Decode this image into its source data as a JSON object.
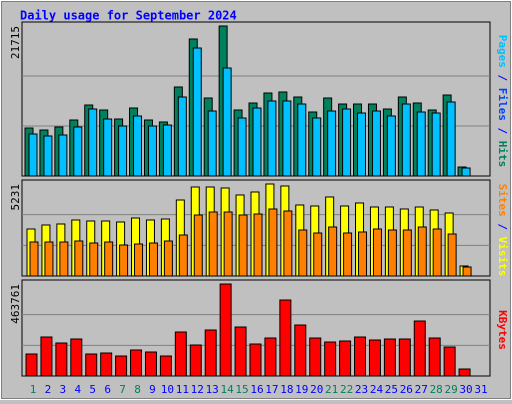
{
  "chart_data": [
    {
      "type": "bar",
      "title": "Daily usage for September 2024",
      "categories": [
        "1",
        "2",
        "3",
        "4",
        "5",
        "6",
        "7",
        "8",
        "9",
        "10",
        "11",
        "12",
        "13",
        "14",
        "15",
        "16",
        "17",
        "18",
        "19",
        "20",
        "21",
        "22",
        "23",
        "24",
        "25",
        "26",
        "27",
        "28",
        "29",
        "30",
        "31"
      ],
      "category_colors": [
        "#00805c",
        "#0000ff",
        "#0000ff",
        "#0000ff",
        "#0000ff",
        "#0000ff",
        "#00805c",
        "#00805c",
        "#0000ff",
        "#0000ff",
        "#0000ff",
        "#0000ff",
        "#0000ff",
        "#00805c",
        "#00805c",
        "#0000ff",
        "#0000ff",
        "#0000ff",
        "#0000ff",
        "#0000ff",
        "#00805c",
        "#00805c",
        "#0000ff",
        "#0000ff",
        "#0000ff",
        "#0000ff",
        "#0000ff",
        "#00805c",
        "#00805c",
        "#0000ff",
        "#0000ff"
      ],
      "axis_label_parts": [
        {
          "text": "Pages",
          "color": "#00c0ff"
        },
        {
          "text": " / ",
          "color": "#0000ff"
        },
        {
          "text": "Files",
          "color": "#0040ff"
        },
        {
          "text": " / ",
          "color": "#0000ff"
        },
        {
          "text": "Hits",
          "color": "#00805c"
        }
      ],
      "ylim": [
        0,
        21715
      ],
      "yticks": [
        21715
      ],
      "series": [
        {
          "name": "Hits",
          "color": "#00805c",
          "values": [
            6949,
            6659,
            7094,
            8107,
            10278,
            9555,
            8252,
            9844,
            8107,
            7817,
            12884,
            19833,
            11292,
            21715,
            9555,
            10568,
            12016,
            12161,
            11437,
            9265,
            11292,
            10423,
            10423,
            10423,
            9699,
            11437,
            10568,
            9555,
            11726,
            1303,
            0
          ]
        },
        {
          "name": "Files",
          "color": "#00c0ff",
          "values": [
            6080,
            5791,
            5935,
            7094,
            9699,
            8252,
            7238,
            8686,
            7238,
            7383,
            11437,
            18530,
            9410,
            15635,
            8397,
            9844,
            10858,
            10858,
            10423,
            8397,
            9410,
            9699,
            9120,
            9410,
            8686,
            10423,
            9265,
            9120,
            10713,
            1158,
            0
          ]
        }
      ]
    },
    {
      "type": "bar",
      "axis_label_parts": [
        {
          "text": "Sites",
          "color": "#ff8000"
        },
        {
          "text": " / ",
          "color": "#0000ff"
        },
        {
          "text": "Visits",
          "color": "#ffff00"
        }
      ],
      "ylim": [
        0,
        5231
      ],
      "yticks": [
        5231
      ],
      "series": [
        {
          "name": "Visits",
          "color": "#ffff00",
          "values": [
            2672,
            2900,
            2957,
            3184,
            3127,
            3127,
            3070,
            3298,
            3184,
            3241,
            4321,
            5060,
            5060,
            5004,
            4606,
            4776,
            5231,
            5117,
            4037,
            3980,
            4492,
            3980,
            4151,
            3923,
            3923,
            3810,
            3923,
            3753,
            3582,
            569,
            0
          ]
        },
        {
          "name": "Sites",
          "color": "#ff8000",
          "values": [
            1933,
            1933,
            1933,
            1990,
            1876,
            1933,
            1763,
            1819,
            1876,
            1990,
            2331,
            3468,
            3639,
            3639,
            3468,
            3525,
            3810,
            3696,
            2616,
            2445,
            2786,
            2445,
            2502,
            2672,
            2616,
            2616,
            2786,
            2672,
            2388,
            512,
            0
          ]
        }
      ]
    },
    {
      "type": "bar",
      "axis_label_parts": [
        {
          "text": "KBytes",
          "color": "#ff0000"
        }
      ],
      "ylim": [
        0,
        463761
      ],
      "yticks": [
        463761
      ],
      "series": [
        {
          "name": "KBytes",
          "color": "#ff0000",
          "values": [
            110899,
            196594,
            166349,
            186512,
            110899,
            115940,
            100818,
            131063,
            120981,
            100818,
            221797,
            156268,
            231881,
            463761,
            247003,
            161308,
            191553,
            383107,
            257084,
            191553,
            171390,
            176431,
            196594,
            181471,
            186512,
            186512,
            277249,
            191553,
            146187,
            35286,
            0
          ]
        }
      ]
    }
  ]
}
